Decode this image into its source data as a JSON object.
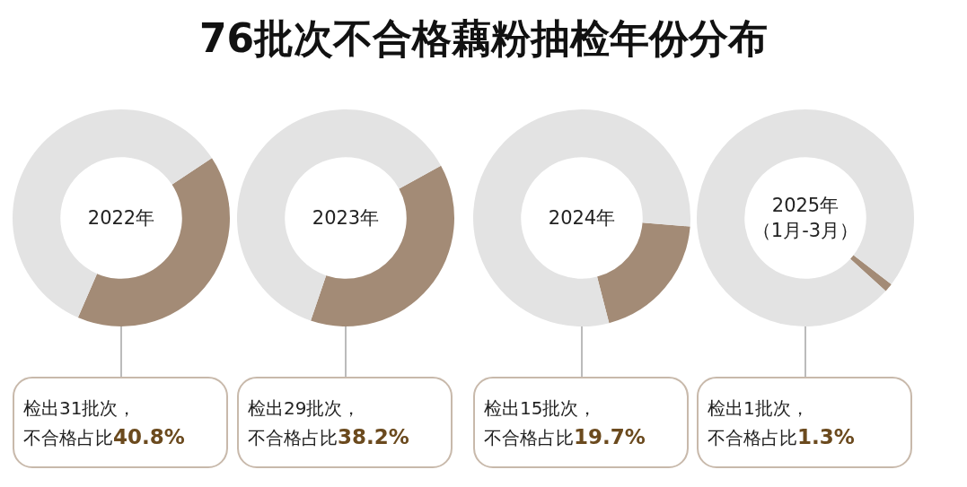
{
  "chart_data": [
    {
      "type": "other",
      "title": "76批次不合格藕粉抽检年份分布"
    },
    {
      "type": "donut",
      "title": "2022年",
      "categories": [
        null,
        null
      ],
      "values": [
        40.8,
        59.2
      ],
      "colors": [
        "#a38b76",
        "#e3e3e3"
      ],
      "annotations": [
        "检出31批次，",
        "不合格占比40.8%"
      ]
    },
    {
      "type": "donut",
      "title": "2023年",
      "categories": [
        null,
        null
      ],
      "values": [
        38.2,
        61.8
      ],
      "colors": [
        "#a38b76",
        "#e3e3e3"
      ],
      "annotations": [
        "检出29批次，",
        "不合格占比38.2%"
      ]
    },
    {
      "type": "donut",
      "title": "2024年",
      "categories": [
        null,
        null
      ],
      "values": [
        19.7,
        80.3
      ],
      "colors": [
        "#a38b76",
        "#e3e3e3"
      ],
      "annotations": [
        "检出15批次，",
        "不合格占比19.7%"
      ]
    },
    {
      "type": "donut",
      "title": "2025年",
      "subtitle": "（1月-3月）",
      "categories": [
        null,
        null
      ],
      "values": [
        1.3,
        98.7
      ],
      "colors": [
        "#a38b76",
        "#e3e3e3"
      ],
      "annotations": [
        "检出1批次，",
        "不合格占比1.3%"
      ]
    }
  ]
}
